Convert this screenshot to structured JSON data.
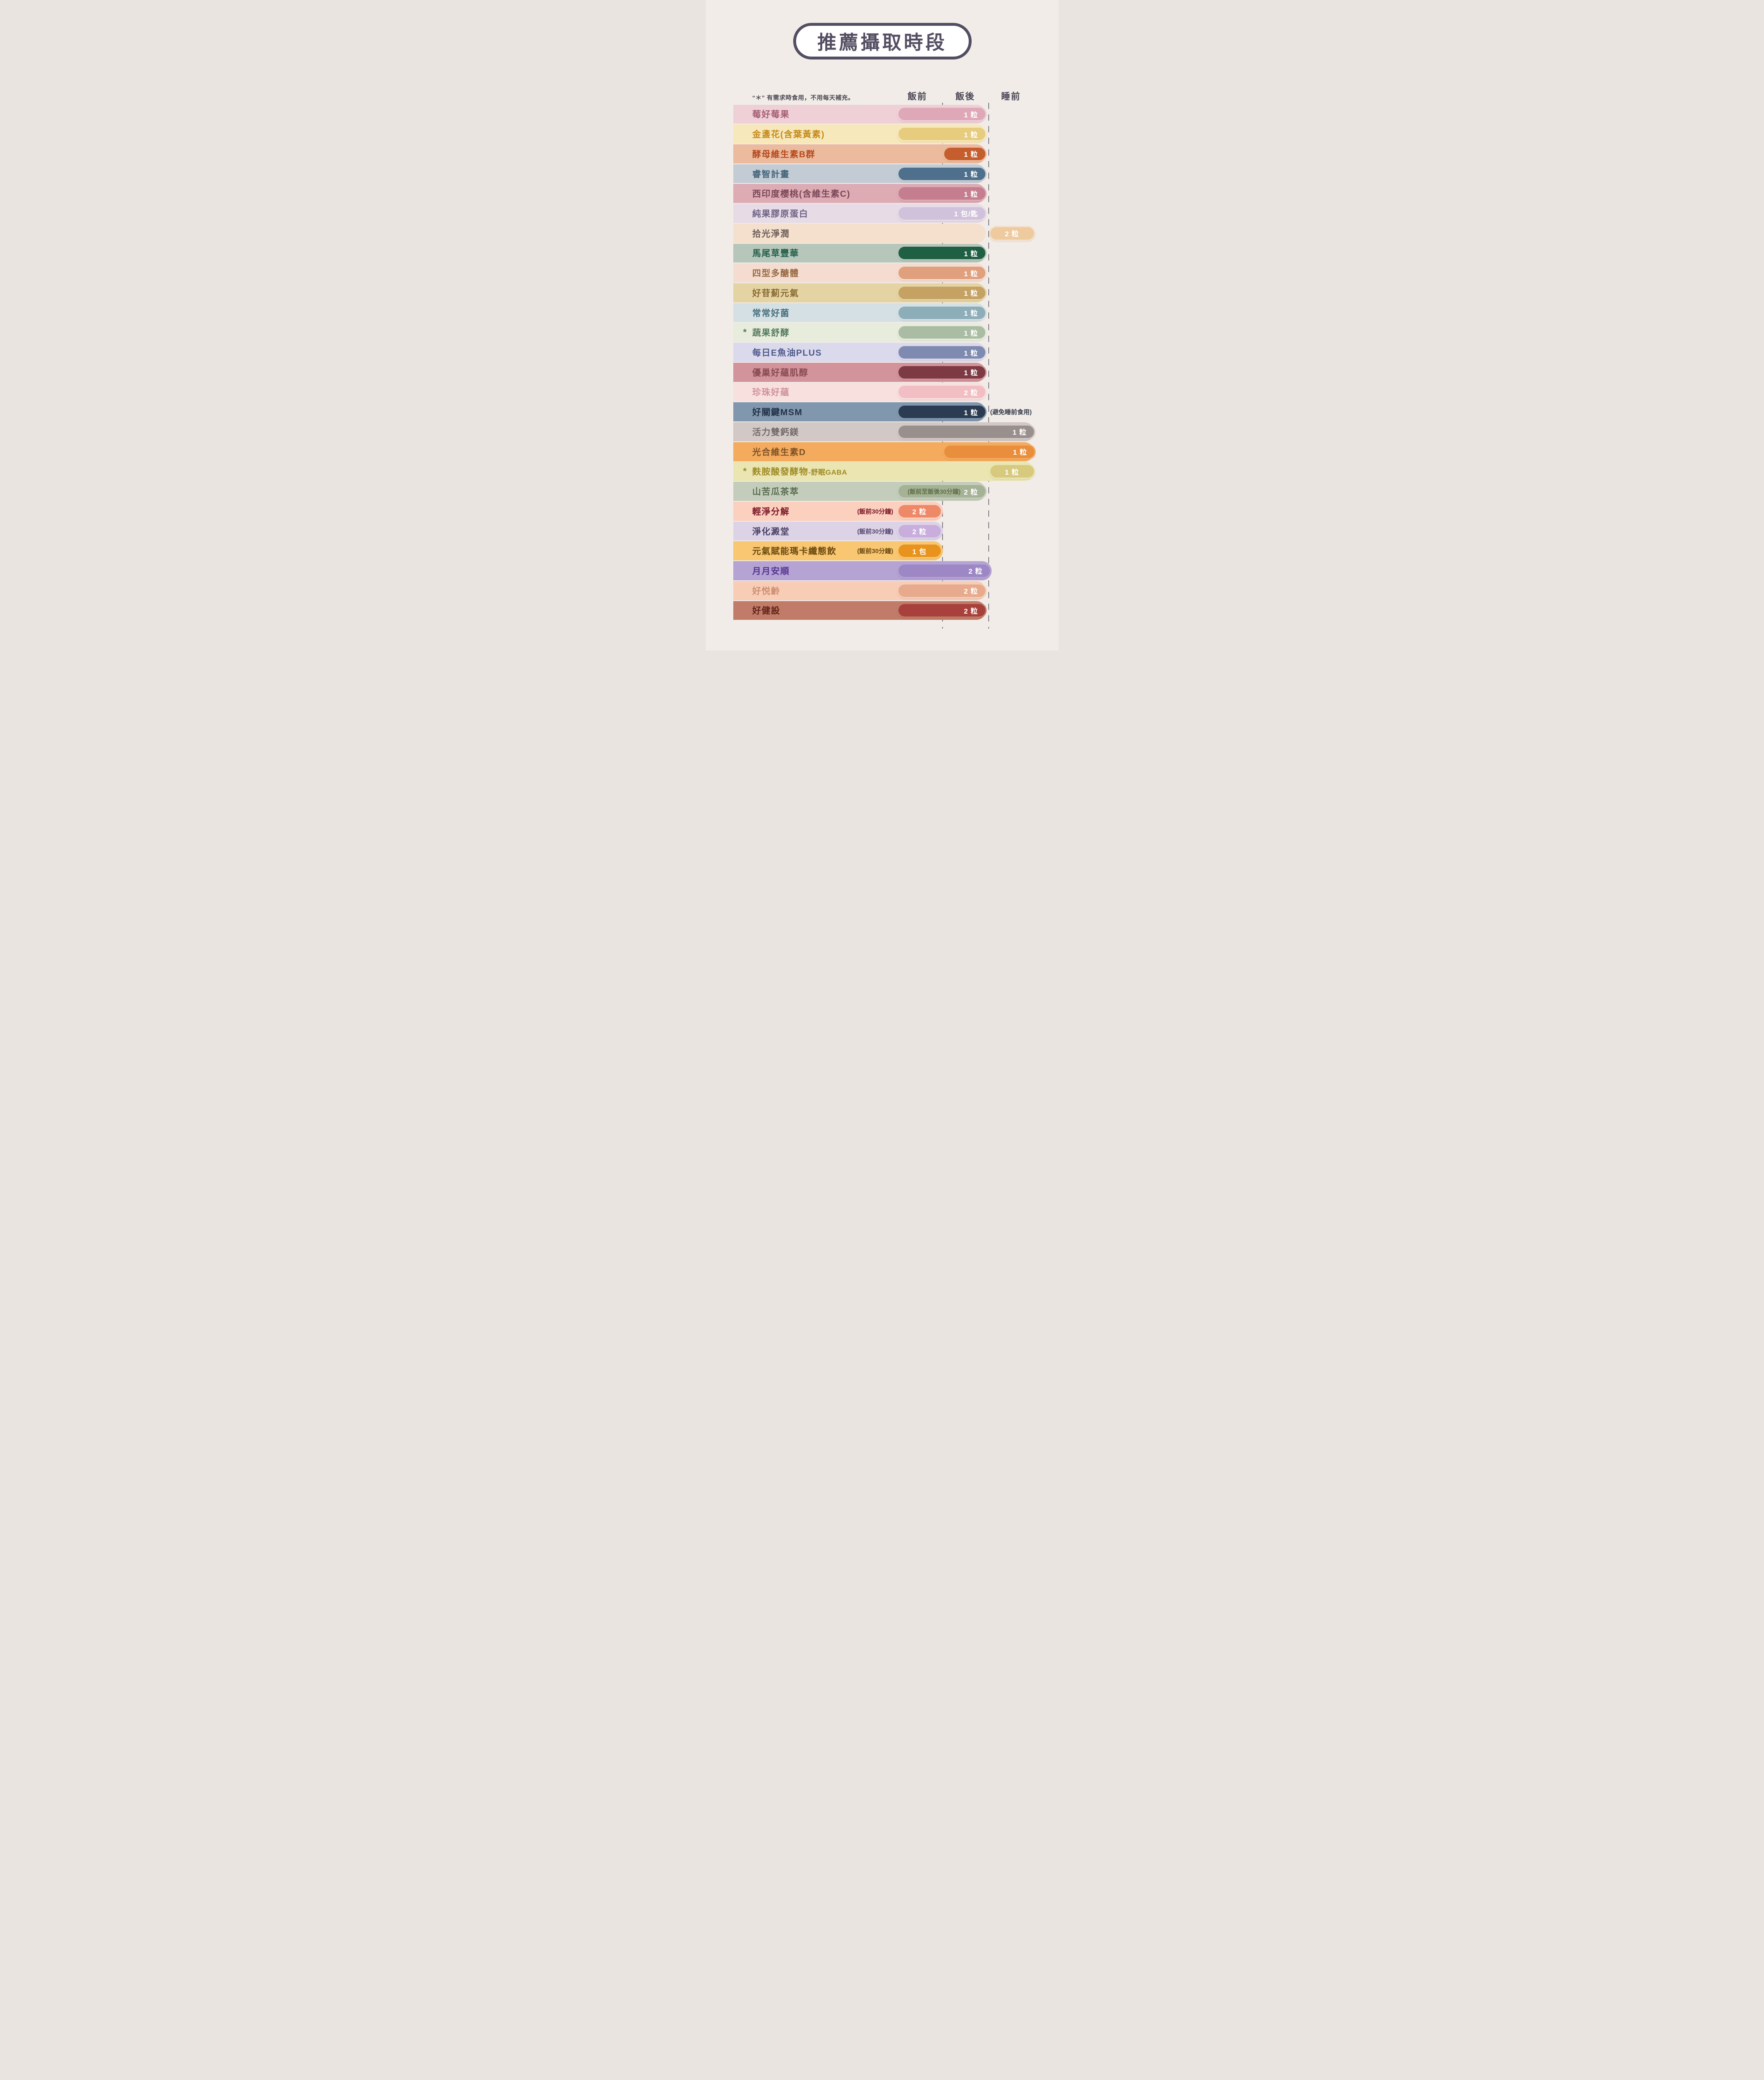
{
  "title": "推薦攝取時段",
  "note": "“＊” 有需求時食用，不用每天補充。",
  "colors": {
    "background": "#f1ece7",
    "title": "#534e62",
    "header_text": "#4a4656",
    "note_text": "#4e4a55",
    "dash_line": "#7f7c84",
    "qty_text": "#ffffff"
  },
  "chart_data": {
    "type": "table",
    "title": "推薦攝取時段",
    "columns": [
      {
        "id": "pre",
        "label": "飯前"
      },
      {
        "id": "post",
        "label": "飯後"
      },
      {
        "id": "sleep",
        "label": "睡前"
      }
    ],
    "legend_note": "“＊” 有需求時食用，不用每天補充。",
    "rows": [
      {
        "name": "莓好莓果",
        "asterisk": false,
        "timing": [
          "飯前",
          "飯後"
        ],
        "span": "pre-post",
        "band": "normal",
        "qty": "1 粒",
        "colors": {
          "band": "#eed0d6",
          "pill": "#dfa8b8",
          "text": "#a55d73"
        }
      },
      {
        "name": "金盞花(含葉黃素)",
        "asterisk": false,
        "timing": [
          "飯前",
          "飯後"
        ],
        "span": "pre-post",
        "band": "normal",
        "qty": "1 粒",
        "colors": {
          "band": "#f7e8bb",
          "pill": "#e6cc7c",
          "text": "#c68b1c"
        }
      },
      {
        "name": "酵母維生素B群",
        "asterisk": false,
        "timing": [
          "飯後"
        ],
        "span": "post",
        "band": "normal",
        "qty": "1 粒",
        "colors": {
          "band": "#ecbb9e",
          "pill": "#c65d2c",
          "text": "#b5491d"
        }
      },
      {
        "name": "睿智計畫",
        "asterisk": false,
        "timing": [
          "飯前",
          "飯後"
        ],
        "span": "pre-post",
        "band": "normal",
        "qty": "1 粒",
        "colors": {
          "band": "#c3ccd4",
          "pill": "#4e708c",
          "text": "#44657c"
        }
      },
      {
        "name": "西印度櫻桃(含維生素C)",
        "asterisk": false,
        "timing": [
          "飯前",
          "飯後"
        ],
        "span": "pre-post",
        "band": "normal",
        "qty": "1 粒",
        "colors": {
          "band": "#dcabb3",
          "pill": "#c57e8f",
          "text": "#7c4757"
        }
      },
      {
        "name": "純果膠原蛋白",
        "asterisk": false,
        "timing": [
          "飯前",
          "飯後"
        ],
        "span": "pre-post",
        "band": "normal",
        "qty": "1 包/匙",
        "colors": {
          "band": "#e7dce6",
          "pill": "#cfc2da",
          "text": "#6e6386"
        }
      },
      {
        "name": "拾光淨潤",
        "asterisk": false,
        "timing": [
          "睡前"
        ],
        "span": "sleep",
        "band": "normal",
        "qty": "2 粒",
        "colors": {
          "band": "#f4e0cd",
          "pill": "#eeca9f",
          "text": "#6c5d57"
        }
      },
      {
        "name": "馬尾草豐華",
        "asterisk": false,
        "timing": [
          "飯前",
          "飯後"
        ],
        "span": "pre-post",
        "band": "normal",
        "qty": "1 粒",
        "colors": {
          "band": "#b7c6bb",
          "pill": "#1f5f43",
          "text": "#23604a"
        }
      },
      {
        "name": "四型多醣體",
        "asterisk": false,
        "timing": [
          "飯前",
          "飯後"
        ],
        "span": "pre-post",
        "band": "normal",
        "qty": "1 粒",
        "colors": {
          "band": "#f4ddd0",
          "pill": "#e0a07e",
          "text": "#996b44"
        }
      },
      {
        "name": "好苷薊元氣",
        "asterisk": false,
        "timing": [
          "飯前",
          "飯後"
        ],
        "span": "pre-post",
        "band": "normal",
        "qty": "1 粒",
        "colors": {
          "band": "#e4d4a3",
          "pill": "#c5a263",
          "text": "#8a6931"
        }
      },
      {
        "name": "常常好菌",
        "asterisk": false,
        "timing": [
          "飯前",
          "飯後"
        ],
        "span": "pre-post",
        "band": "normal",
        "qty": "1 粒",
        "colors": {
          "band": "#d5e0e4",
          "pill": "#8dadb9",
          "text": "#47707e"
        }
      },
      {
        "name": "蔬果舒酵",
        "asterisk": true,
        "timing": [
          "飯前",
          "飯後"
        ],
        "span": "pre-post",
        "band": "normal",
        "qty": "1 粒",
        "colors": {
          "band": "#e8ecdc",
          "pill": "#aabda4",
          "text": "#557c5f"
        }
      },
      {
        "name": "每日E魚油PLUS",
        "asterisk": false,
        "timing": [
          "飯前",
          "飯後"
        ],
        "span": "pre-post",
        "band": "normal",
        "qty": "1 粒",
        "colors": {
          "band": "#dbd9ec",
          "pill": "#7e8aaf",
          "text": "#4f5a8c"
        }
      },
      {
        "name": "優巢好蘊肌醇",
        "asterisk": false,
        "timing": [
          "飯前",
          "飯後"
        ],
        "span": "pre-post",
        "band": "normal",
        "qty": "1 粒",
        "colors": {
          "band": "#d2939b",
          "pill": "#7d3a43",
          "text": "#8a4a53"
        }
      },
      {
        "name": "珍珠好蘊",
        "asterisk": false,
        "timing": [
          "飯前",
          "飯後"
        ],
        "span": "pre-post",
        "band": "normal",
        "qty": "2 粒",
        "colors": {
          "band": "#f7e0de",
          "pill": "#f1bfc3",
          "text": "#cf929b"
        }
      },
      {
        "name": "好關鍵MSM",
        "asterisk": false,
        "timing": [
          "飯前",
          "飯後"
        ],
        "span": "pre-post",
        "band": "normal",
        "qty": "1 粒",
        "note_after": "(避免睡前食用)",
        "colors": {
          "band": "#8097ae",
          "pill": "#2b3b51",
          "text": "#233147",
          "note_after": "#39404f"
        }
      },
      {
        "name": "活力雙鈣鎂",
        "asterisk": false,
        "timing": [
          "飯前",
          "飯後",
          "睡前"
        ],
        "span": "pre-post-sleep",
        "band": "wide",
        "qty": "1 粒",
        "colors": {
          "band": "#d2c8c6",
          "pill": "#99908e",
          "text": "#756a6a"
        }
      },
      {
        "name": "光合維生素D",
        "asterisk": false,
        "timing": [
          "飯後",
          "睡前"
        ],
        "span": "post-sleep",
        "band": "wide",
        "qty": "1 粒",
        "colors": {
          "band": "#f5ab5e",
          "pill": "#e98e3c",
          "text": "#7d5226"
        }
      },
      {
        "name": "麩胺酸發酵物",
        "name_suffix": "-舒眠GABA",
        "asterisk": true,
        "timing": [
          "睡前"
        ],
        "span": "sleep",
        "band": "wide",
        "qty": "1 粒",
        "colors": {
          "band": "#eae5b1",
          "pill": "#d7c97d",
          "text": "#9f8b26"
        }
      },
      {
        "name": "山苦瓜茶萃",
        "asterisk": false,
        "timing": [
          "飯前",
          "飯後"
        ],
        "span": "pre-post",
        "band": "normal",
        "qty": "2 粒",
        "pill_note": "(飯前至飯後30分鐘)",
        "colors": {
          "band": "#c4cdbb",
          "pill": "#a5b295",
          "text": "#5a6e51",
          "pill_note": "#5f7048"
        }
      },
      {
        "name": "輕淨分解",
        "asterisk": false,
        "timing": [
          "飯前"
        ],
        "span": "pre-30",
        "band": "short",
        "qty": "2 粒",
        "sub_note": "(飯前30分鐘)",
        "colors": {
          "band": "#fbd0be",
          "pill": "#ee8968",
          "text": "#7c1626",
          "sub_note": "#7c1626"
        }
      },
      {
        "name": "淨化澱堂",
        "asterisk": false,
        "timing": [
          "飯前"
        ],
        "span": "pre-30",
        "band": "short",
        "qty": "2 粒",
        "sub_note": "(飯前30分鐘)",
        "colors": {
          "band": "#ddd3e6",
          "pill": "#c9aedd",
          "text": "#4c4266",
          "sub_note": "#554a70"
        }
      },
      {
        "name": "元氣賦能瑪卡纖態飲",
        "asterisk": false,
        "timing": [
          "飯前"
        ],
        "span": "pre-30",
        "band": "short",
        "qty": "1 包",
        "sub_note": "(飯前30分鐘)",
        "colors": {
          "band": "#f9c671",
          "pill": "#e8931d",
          "text": "#6b4a10",
          "sub_note": "#6b4a10"
        }
      },
      {
        "name": "月月安順",
        "asterisk": false,
        "timing": [
          "飯前",
          "飯後"
        ],
        "span": "pre-post-edge",
        "band": "monthly",
        "qty": "2 粒",
        "colors": {
          "band": "#b4a3d3",
          "pill": "#9d88c5",
          "text": "#563591"
        }
      },
      {
        "name": "好悦齡",
        "asterisk": false,
        "timing": [
          "飯前",
          "飯後"
        ],
        "span": "pre-post",
        "band": "normal",
        "qty": "2 粒",
        "colors": {
          "band": "#f7cdb6",
          "pill": "#e7aa8c",
          "text": "#d08d72"
        }
      },
      {
        "name": "好健設",
        "asterisk": false,
        "timing": [
          "飯前",
          "飯後"
        ],
        "span": "pre-post",
        "band": "normal",
        "qty": "2 粒",
        "colors": {
          "band": "#c07c68",
          "pill": "#a8413c",
          "text": "#5f2318"
        }
      }
    ]
  }
}
